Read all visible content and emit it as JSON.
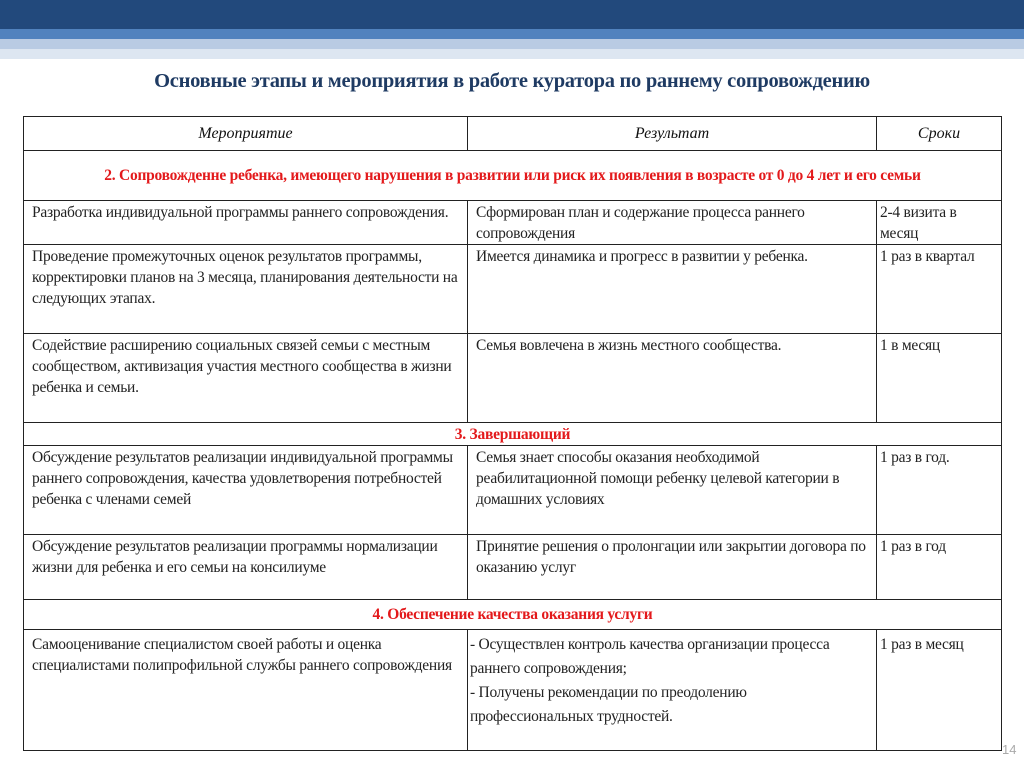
{
  "title": "Основные этапы и мероприятия в работе куратора по раннему сопровождению",
  "columns": [
    "Мероприятие",
    "Результат",
    "Сроки"
  ],
  "sections": [
    {
      "heading": "2. Сопровожденне ребенка, имеющего нарушения в развитии или риск их появления в возрасте от  0 до 4 лет  и его семьи",
      "rows": [
        {
          "activity": "Разработка индивидуальной программы раннего сопровождения.",
          "result": "Сформирован план и содержание процесса раннего сопровождения",
          "term": "2-4 визита в месяц"
        },
        {
          "activity": "Проведение промежуточных оценок результатов программы, корректировки планов на 3 месяца, планирования деятельности на следующих этапах.",
          "result": "Имеется динамика и прогресс в развитии у ребенка.",
          "term": "1 раз в квартал"
        },
        {
          "activity": "Содействие расширению социальных связей семьи с местным сообществом, активизация участия местного сообщества в жизни ребенка и семьи.",
          "result": "Семья вовлечена в жизнь местного сообщества.",
          "term": "1 в месяц"
        }
      ]
    },
    {
      "heading": "3. Завершающий",
      "rows": [
        {
          "activity": "Обсуждение результатов реализации индивидуальной программы раннего сопровождения, качества удовлетворения потребностей ребенка с членами семей",
          "result": "Семья знает способы оказания необходимой реабилитационной помощи ребенку целевой категории в домашних условиях",
          "term": "1 раз в год."
        },
        {
          "activity": "Обсуждение результатов реализации программы нормализации жизни для ребенка и его семьи на консилиуме",
          "result": "Принятие решения о пролонгации или закрытии договора по оказанию услуг",
          "term": "1 раз в год"
        }
      ]
    },
    {
      "heading": "4. Обеспечение качества оказания услуги",
      "rows": [
        {
          "activity": "Самооценивание специалистом своей работы и оценка специалистами полипрофильной службы раннего сопровождения",
          "result": "- Осуществлен контроль качества организации процесса раннего сопровождения;\n- Получены рекомендации по преодолению профессиональных трудностей.",
          "term": "1 раз в месяц"
        }
      ]
    }
  ],
  "page_number": "14",
  "colors": {
    "accent_dark": "#22497c",
    "section_heading": "#e3191b",
    "title": "#1f3b63"
  }
}
